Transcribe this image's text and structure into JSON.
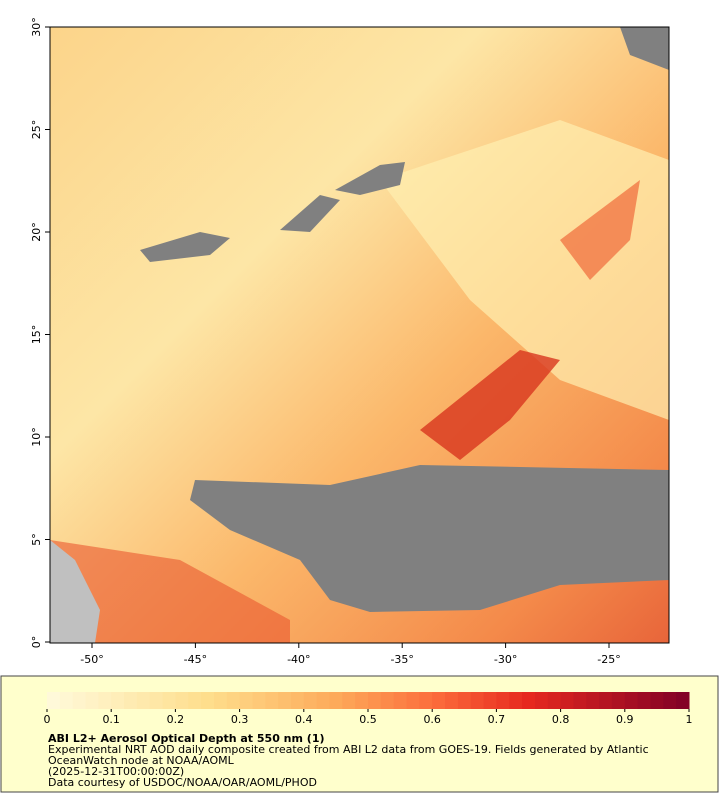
{
  "map": {
    "x_ticks": [
      {
        "value": -50,
        "label": "-50°"
      },
      {
        "value": -45,
        "label": "-45°"
      },
      {
        "value": -40,
        "label": "-40°"
      },
      {
        "value": -35,
        "label": "-35°"
      },
      {
        "value": -30,
        "label": "-30°"
      },
      {
        "value": -25,
        "label": "-25°"
      }
    ],
    "y_ticks": [
      {
        "value": 0,
        "label": "0°"
      },
      {
        "value": 5,
        "label": "5°"
      },
      {
        "value": 10,
        "label": "10°"
      },
      {
        "value": 15,
        "label": "15°"
      },
      {
        "value": 20,
        "label": "20°"
      },
      {
        "value": 25,
        "label": "25°"
      },
      {
        "value": 30,
        "label": "30°"
      }
    ]
  },
  "legend": {
    "colorbar_ticks": [
      0,
      0.1,
      0.2,
      0.3,
      0.4,
      0.5,
      0.6,
      0.7,
      0.8,
      0.9,
      1
    ],
    "title": "ABI L2+ Aerosol Optical Depth at 550 nm (1)",
    "lines": [
      "Experimental NRT AOD daily composite created from ABI L2 data from GOES-19. Fields generated by Atlantic",
      "OceanWatch node at NOAA/AOML",
      "(2025-12-31T00:00:00Z)",
      "Data courtesy of USDOC/NOAA/OAR/AOML/PHOD"
    ]
  }
}
